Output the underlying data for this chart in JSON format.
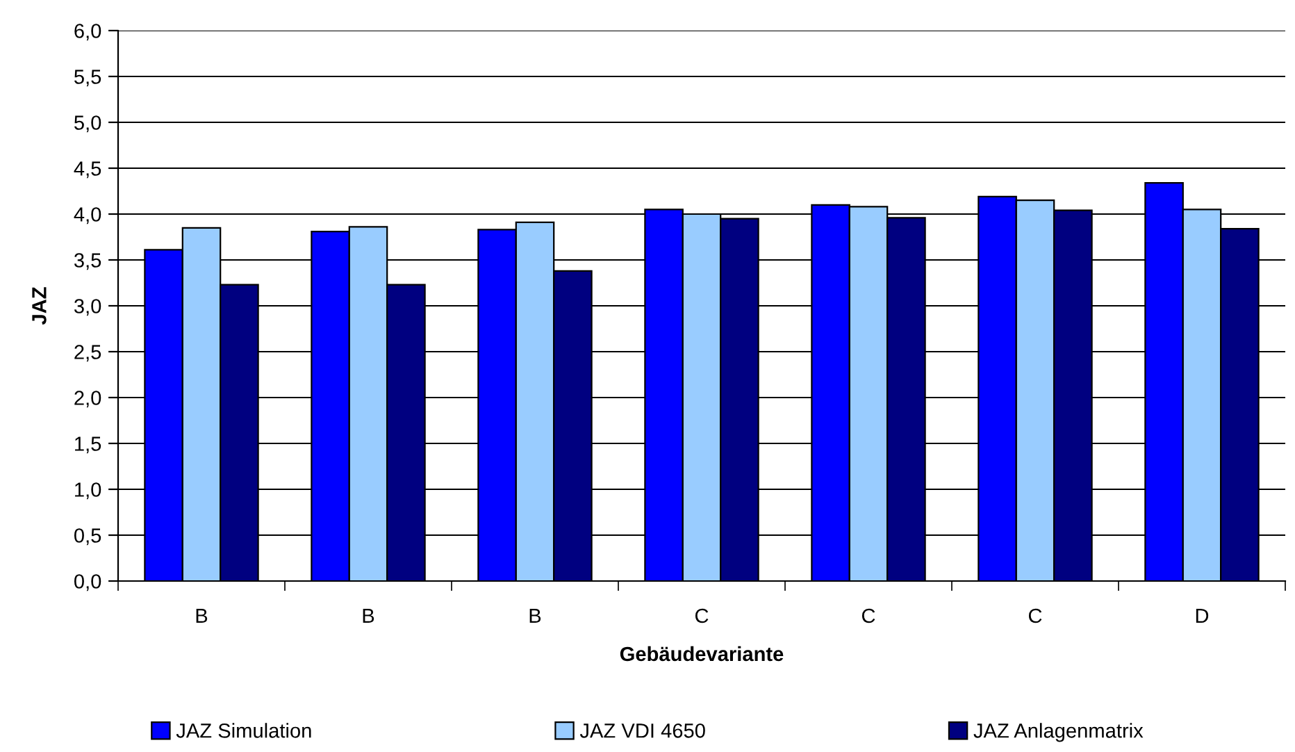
{
  "chart_data": {
    "type": "bar",
    "xlabel": "Gebäudevariante",
    "ylabel": "JAZ",
    "categories": [
      "B",
      "B",
      "B",
      "C",
      "C",
      "C",
      "D"
    ],
    "series": [
      {
        "name": "JAZ Simulation",
        "color": "#0000ff",
        "values": [
          3.61,
          3.81,
          3.83,
          4.05,
          4.1,
          4.19,
          4.34
        ]
      },
      {
        "name": "JAZ VDI 4650",
        "color": "#99ccff",
        "values": [
          3.85,
          3.86,
          3.91,
          4.0,
          4.08,
          4.15,
          4.05
        ]
      },
      {
        "name": "JAZ Anlagenmatrix",
        "color": "#000080",
        "values": [
          3.23,
          3.23,
          3.38,
          3.95,
          3.96,
          4.04,
          3.84
        ]
      }
    ],
    "ylim": [
      0,
      6
    ],
    "yticks": [
      {
        "value": 0,
        "label": "0,0"
      },
      {
        "value": 0.5,
        "label": "0,5"
      },
      {
        "value": 1,
        "label": "1,0"
      },
      {
        "value": 1.5,
        "label": "1,5"
      },
      {
        "value": 2,
        "label": "2,0"
      },
      {
        "value": 2.5,
        "label": "2,5"
      },
      {
        "value": 3,
        "label": "3,0"
      },
      {
        "value": 3.5,
        "label": "3,5"
      },
      {
        "value": 4,
        "label": "4,0"
      },
      {
        "value": 4.5,
        "label": "4,5"
      },
      {
        "value": 5,
        "label": "5,0"
      },
      {
        "value": 5.5,
        "label": "5,5"
      },
      {
        "value": 6,
        "label": "6,0"
      }
    ],
    "grid": "y",
    "legend": "bottom"
  }
}
